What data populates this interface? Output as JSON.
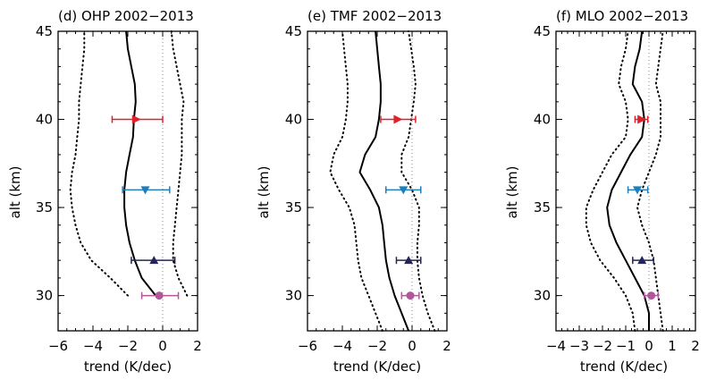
{
  "colors": {
    "red": "#e0202a",
    "blue": "#1f7fb8",
    "navy": "#23245a",
    "magenta": "#b0569a",
    "line": "#000000",
    "zero": "#888888"
  },
  "chart_data": [
    {
      "type": "line",
      "title": "(d)  OHP  2002−2013",
      "xlabel": "trend (K/dec)",
      "ylabel": "alt (km)",
      "xlim": [
        -6,
        2
      ],
      "ylim": [
        28,
        45
      ],
      "xticks": [
        -6,
        -4,
        -2,
        0,
        2
      ],
      "xtick_labels": [
        "−6",
        "−4",
        "−2",
        "0",
        "2"
      ],
      "yticks": [
        30,
        35,
        40,
        45
      ],
      "ytick_labels": [
        "30",
        "35",
        "40",
        "45"
      ],
      "grid": false,
      "series": [
        {
          "style": "solid",
          "alt": [
            30,
            31,
            32,
            33,
            34,
            35,
            36,
            37,
            38,
            39,
            40,
            41,
            42,
            43,
            44,
            45
          ],
          "trend": [
            -0.4,
            -1.2,
            -1.6,
            -1.9,
            -2.1,
            -2.2,
            -2.2,
            -2.1,
            -1.9,
            -1.7,
            -1.65,
            -1.55,
            -1.6,
            -1.8,
            -2.0,
            -2.1
          ]
        },
        {
          "style": "dotted",
          "alt": [
            30,
            31,
            32,
            33,
            34,
            35,
            36,
            37,
            38,
            39,
            40,
            41,
            42,
            43,
            44,
            45
          ],
          "trend": [
            -2.0,
            -3.0,
            -4.1,
            -4.7,
            -5.0,
            -5.2,
            -5.3,
            -5.2,
            -5.0,
            -4.9,
            -4.8,
            -4.8,
            -4.7,
            -4.6,
            -4.5,
            -4.5
          ]
        },
        {
          "style": "dotted",
          "alt": [
            30,
            31,
            32,
            33,
            34,
            35,
            36,
            37,
            38,
            39,
            40,
            41,
            42,
            43,
            44,
            45
          ],
          "trend": [
            1.4,
            0.9,
            0.6,
            0.6,
            0.7,
            0.8,
            0.9,
            1.0,
            1.1,
            1.1,
            1.1,
            1.2,
            1.0,
            0.8,
            0.6,
            0.5
          ]
        }
      ],
      "points": [
        {
          "alt": 40,
          "trend": -1.5,
          "err_low": -2.9,
          "err_high": 0.0,
          "marker": "triangle-right",
          "color": "red"
        },
        {
          "alt": 36,
          "trend": -1.0,
          "err_low": -2.3,
          "err_high": 0.4,
          "marker": "triangle-down",
          "color": "blue"
        },
        {
          "alt": 32,
          "trend": -0.5,
          "err_low": -1.8,
          "err_high": 0.7,
          "marker": "triangle-up",
          "color": "navy"
        },
        {
          "alt": 30,
          "trend": -0.2,
          "err_low": -1.2,
          "err_high": 0.9,
          "marker": "circle",
          "color": "magenta"
        }
      ]
    },
    {
      "type": "line",
      "title": "(e)  TMF  2002−2013",
      "xlabel": "trend (K/dec)",
      "ylabel": "alt (km)",
      "xlim": [
        -6,
        2
      ],
      "ylim": [
        28,
        45
      ],
      "xticks": [
        -6,
        -4,
        -2,
        0,
        2
      ],
      "xtick_labels": [
        "−6",
        "−4",
        "−2",
        "0",
        "2"
      ],
      "yticks": [
        30,
        35,
        40,
        45
      ],
      "ytick_labels": [
        "30",
        "35",
        "40",
        "45"
      ],
      "grid": false,
      "series": [
        {
          "style": "solid",
          "alt": [
            28,
            29,
            30,
            31,
            32,
            33,
            34,
            35,
            36,
            37,
            38,
            39,
            40,
            41,
            42,
            43,
            44,
            45
          ],
          "trend": [
            -0.2,
            -0.6,
            -1.0,
            -1.3,
            -1.5,
            -1.6,
            -1.7,
            -1.9,
            -2.4,
            -3.0,
            -2.7,
            -2.1,
            -1.9,
            -1.8,
            -1.8,
            -1.9,
            -2.0,
            -2.1
          ]
        },
        {
          "style": "dotted",
          "alt": [
            28,
            29,
            30,
            31,
            32,
            33,
            34,
            35,
            36,
            37,
            38,
            39,
            40,
            41,
            42,
            43,
            44,
            45
          ],
          "trend": [
            -1.7,
            -2.1,
            -2.5,
            -2.9,
            -3.1,
            -3.2,
            -3.3,
            -3.6,
            -4.2,
            -4.7,
            -4.5,
            -4.0,
            -3.8,
            -3.7,
            -3.7,
            -3.8,
            -3.9,
            -4.0
          ]
        },
        {
          "style": "dotted",
          "alt": [
            28,
            29,
            30,
            31,
            32,
            33,
            34,
            35,
            36,
            37,
            38,
            39,
            40,
            41,
            42,
            43,
            44,
            45
          ],
          "trend": [
            1.3,
            0.9,
            0.6,
            0.4,
            0.3,
            0.3,
            0.4,
            0.4,
            0.0,
            -0.6,
            -0.6,
            -0.2,
            -0.05,
            0.1,
            0.2,
            0.1,
            -0.05,
            -0.2
          ]
        }
      ],
      "points": [
        {
          "alt": 40,
          "trend": -0.8,
          "err_low": -1.8,
          "err_high": 0.2,
          "marker": "triangle-right",
          "color": "red"
        },
        {
          "alt": 36,
          "trend": -0.5,
          "err_low": -1.5,
          "err_high": 0.5,
          "marker": "triangle-down",
          "color": "blue"
        },
        {
          "alt": 32,
          "trend": -0.2,
          "err_low": -0.9,
          "err_high": 0.5,
          "marker": "triangle-up",
          "color": "navy"
        },
        {
          "alt": 30,
          "trend": -0.1,
          "err_low": -0.6,
          "err_high": 0.4,
          "marker": "circle",
          "color": "magenta"
        }
      ]
    },
    {
      "type": "line",
      "title": "(f)  MLO  2002−2013",
      "xlabel": "trend (K/dec)",
      "ylabel": "alt (km)",
      "xlim": [
        -4,
        2
      ],
      "ylim": [
        28,
        45
      ],
      "xticks": [
        -4,
        -3,
        -2,
        -1,
        0,
        1,
        2
      ],
      "xtick_labels": [
        "−4",
        "−3",
        "−2",
        "−1",
        "0",
        "1",
        "2"
      ],
      "yticks": [
        30,
        35,
        40,
        45
      ],
      "ytick_labels": [
        "30",
        "35",
        "40",
        "45"
      ],
      "grid": false,
      "series": [
        {
          "style": "solid",
          "alt": [
            28,
            29,
            30,
            31,
            32,
            33,
            34,
            35,
            36,
            37,
            38,
            39,
            40,
            41,
            42,
            43,
            44,
            45
          ],
          "trend": [
            0.0,
            0.0,
            -0.2,
            -0.6,
            -1.0,
            -1.4,
            -1.7,
            -1.8,
            -1.6,
            -1.2,
            -0.8,
            -0.3,
            -0.2,
            -0.3,
            -0.7,
            -0.6,
            -0.4,
            -0.3
          ]
        },
        {
          "style": "dotted",
          "alt": [
            28,
            29,
            30,
            31,
            32,
            33,
            34,
            35,
            36,
            37,
            38,
            39,
            40,
            41,
            42,
            43,
            44,
            45
          ],
          "trend": [
            -0.6,
            -0.7,
            -1.0,
            -1.5,
            -2.1,
            -2.5,
            -2.7,
            -2.7,
            -2.4,
            -2.0,
            -1.6,
            -1.0,
            -0.9,
            -1.0,
            -1.3,
            -1.2,
            -1.0,
            -0.9
          ]
        },
        {
          "style": "dotted",
          "alt": [
            28,
            29,
            30,
            31,
            32,
            33,
            34,
            35,
            36,
            37,
            38,
            39,
            40,
            41,
            42,
            43,
            44,
            45
          ],
          "trend": [
            0.6,
            0.5,
            0.4,
            0.3,
            0.2,
            0.0,
            -0.3,
            -0.5,
            -0.3,
            0.0,
            0.3,
            0.5,
            0.5,
            0.5,
            0.3,
            0.4,
            0.5,
            0.6
          ]
        }
      ],
      "points": [
        {
          "alt": 40,
          "trend": -0.3,
          "err_low": -0.6,
          "err_high": -0.05,
          "marker": "triangle-right",
          "color": "red"
        },
        {
          "alt": 36,
          "trend": -0.5,
          "err_low": -0.9,
          "err_high": -0.05,
          "marker": "triangle-down",
          "color": "blue"
        },
        {
          "alt": 32,
          "trend": -0.3,
          "err_low": -0.7,
          "err_high": 0.2,
          "marker": "triangle-up",
          "color": "navy"
        },
        {
          "alt": 30,
          "trend": 0.1,
          "err_low": -0.2,
          "err_high": 0.4,
          "marker": "circle",
          "color": "magenta"
        }
      ]
    }
  ]
}
